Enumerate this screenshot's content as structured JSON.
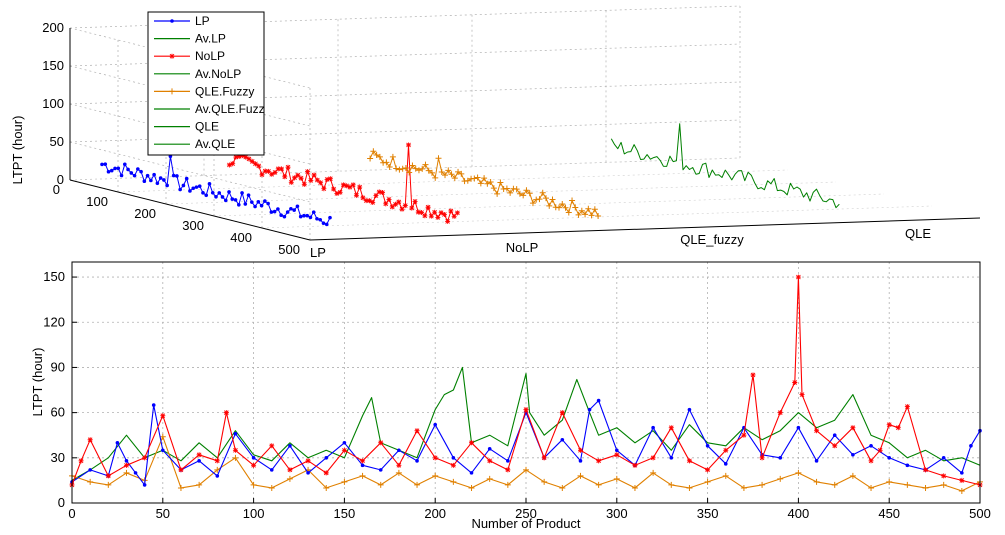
{
  "figure": {
    "top": {
      "ylabel": "LTPT (hour)",
      "zticks": [
        "0",
        "50",
        "100",
        "150",
        "200"
      ],
      "depth_ticks": [
        "0",
        "100",
        "200",
        "300",
        "400",
        "500"
      ],
      "groups": [
        "LP",
        "NoLP",
        "QLE_fuzzy",
        "QLE"
      ],
      "legend": [
        {
          "label": "LP",
          "color": "#0000ff",
          "marker": "dot"
        },
        {
          "label": "Av.LP",
          "color": "#008000",
          "marker": "none"
        },
        {
          "label": "NoLP",
          "color": "#ff0000",
          "marker": "star"
        },
        {
          "label": "Av.NoLP",
          "color": "#008000",
          "marker": "none"
        },
        {
          "label": "QLE.Fuzzy",
          "color": "#e08000",
          "marker": "plus"
        },
        {
          "label": "Av.QLE.Fuzz",
          "color": "#008000",
          "marker": "none"
        },
        {
          "label": "QLE",
          "color": "#008000",
          "marker": "none"
        },
        {
          "label": "Av.QLE",
          "color": "#008000",
          "marker": "none"
        }
      ]
    },
    "bottom": {
      "xlabel": "Number of Product",
      "ylabel": "LTPT (hour)",
      "xticks": [
        "0",
        "50",
        "100",
        "150",
        "200",
        "250",
        "300",
        "350",
        "400",
        "450",
        "500"
      ],
      "yticks": [
        "0",
        "30",
        "60",
        "90",
        "120",
        "150"
      ]
    }
  },
  "chart_data": [
    {
      "type": "line",
      "title": "",
      "ylabel": "LTPT (hour)",
      "zlim": [
        0,
        200
      ],
      "depth_range": [
        0,
        500
      ],
      "categories": [
        "LP",
        "NoLP",
        "QLE_fuzzy",
        "QLE"
      ],
      "series": [
        {
          "name": "LP",
          "color": "#0000ff",
          "mean": 22,
          "peak": 55
        },
        {
          "name": "NoLP",
          "color": "#ff0000",
          "mean": 22,
          "peak": 100
        },
        {
          "name": "QLE.Fuzzy",
          "color": "#e08000",
          "mean": 20,
          "peak": 40
        },
        {
          "name": "QLE",
          "color": "#008000",
          "mean": 24,
          "peak": 75
        }
      ]
    },
    {
      "type": "line",
      "title": "",
      "xlabel": "Number of Product",
      "ylabel": "LTPT (hour)",
      "xlim": [
        0,
        500
      ],
      "ylim": [
        0,
        160
      ],
      "grid": true,
      "series": [
        {
          "name": "LP",
          "color": "#0000ff",
          "marker": "dot",
          "x": [
            0,
            10,
            20,
            25,
            30,
            35,
            40,
            45,
            50,
            60,
            70,
            80,
            90,
            100,
            110,
            120,
            130,
            140,
            150,
            160,
            170,
            180,
            190,
            200,
            210,
            220,
            230,
            240,
            250,
            260,
            270,
            280,
            285,
            290,
            300,
            310,
            320,
            330,
            340,
            350,
            360,
            370,
            380,
            390,
            400,
            410,
            420,
            430,
            440,
            450,
            460,
            470,
            480,
            490,
            495,
            500
          ],
          "y": [
            14,
            22,
            18,
            40,
            28,
            20,
            12,
            65,
            35,
            22,
            28,
            18,
            46,
            30,
            22,
            38,
            20,
            30,
            40,
            25,
            22,
            35,
            28,
            52,
            30,
            20,
            36,
            28,
            60,
            30,
            42,
            28,
            62,
            68,
            35,
            25,
            50,
            30,
            62,
            38,
            26,
            50,
            32,
            30,
            50,
            28,
            45,
            32,
            38,
            30,
            25,
            22,
            30,
            20,
            38,
            48
          ]
        },
        {
          "name": "NoLP",
          "color": "#ff0000",
          "marker": "star",
          "x": [
            0,
            5,
            10,
            20,
            30,
            40,
            50,
            60,
            70,
            80,
            85,
            90,
            100,
            110,
            120,
            130,
            140,
            150,
            160,
            170,
            180,
            190,
            200,
            210,
            220,
            230,
            240,
            250,
            260,
            270,
            280,
            290,
            300,
            310,
            320,
            330,
            340,
            350,
            360,
            370,
            375,
            380,
            390,
            398,
            400,
            402,
            410,
            420,
            430,
            440,
            445,
            450,
            455,
            460,
            470,
            480,
            490,
            500
          ],
          "y": [
            12,
            28,
            42,
            18,
            25,
            30,
            58,
            22,
            32,
            28,
            60,
            35,
            25,
            38,
            22,
            28,
            20,
            35,
            28,
            40,
            25,
            48,
            30,
            25,
            40,
            28,
            22,
            62,
            30,
            60,
            35,
            28,
            32,
            25,
            30,
            50,
            28,
            22,
            35,
            45,
            85,
            30,
            60,
            80,
            150,
            72,
            48,
            38,
            50,
            28,
            35,
            52,
            50,
            64,
            22,
            18,
            15,
            12
          ]
        },
        {
          "name": "QLE.Fuzzy",
          "color": "#e08000",
          "marker": "plus",
          "x": [
            0,
            10,
            20,
            30,
            40,
            50,
            60,
            70,
            80,
            90,
            100,
            110,
            120,
            130,
            140,
            150,
            160,
            170,
            180,
            190,
            200,
            210,
            220,
            230,
            240,
            250,
            260,
            270,
            280,
            290,
            300,
            310,
            320,
            330,
            340,
            350,
            360,
            370,
            380,
            390,
            400,
            410,
            420,
            430,
            440,
            450,
            460,
            470,
            480,
            490,
            500
          ],
          "y": [
            18,
            14,
            12,
            20,
            15,
            44,
            10,
            12,
            22,
            30,
            12,
            10,
            16,
            22,
            10,
            14,
            18,
            12,
            20,
            12,
            18,
            14,
            10,
            16,
            12,
            22,
            14,
            10,
            18,
            12,
            16,
            10,
            20,
            12,
            10,
            14,
            18,
            10,
            12,
            16,
            20,
            14,
            12,
            18,
            10,
            14,
            12,
            10,
            12,
            8,
            14
          ]
        },
        {
          "name": "QLE",
          "color": "#008000",
          "marker": "none",
          "x": [
            0,
            10,
            20,
            30,
            40,
            50,
            60,
            70,
            80,
            90,
            100,
            110,
            120,
            130,
            140,
            150,
            160,
            165,
            170,
            180,
            190,
            200,
            205,
            210,
            215,
            220,
            230,
            240,
            250,
            252,
            260,
            270,
            278,
            285,
            290,
            300,
            310,
            320,
            330,
            340,
            350,
            360,
            370,
            380,
            390,
            400,
            410,
            420,
            430,
            440,
            450,
            460,
            470,
            480,
            490,
            500
          ],
          "y": [
            15,
            22,
            30,
            45,
            30,
            35,
            28,
            40,
            30,
            48,
            32,
            28,
            40,
            30,
            35,
            30,
            58,
            70,
            40,
            35,
            30,
            62,
            72,
            75,
            90,
            40,
            45,
            38,
            86,
            60,
            45,
            55,
            82,
            60,
            45,
            50,
            40,
            48,
            35,
            52,
            40,
            38,
            50,
            42,
            48,
            60,
            50,
            55,
            72,
            45,
            40,
            30,
            35,
            28,
            30,
            25
          ]
        }
      ]
    }
  ]
}
